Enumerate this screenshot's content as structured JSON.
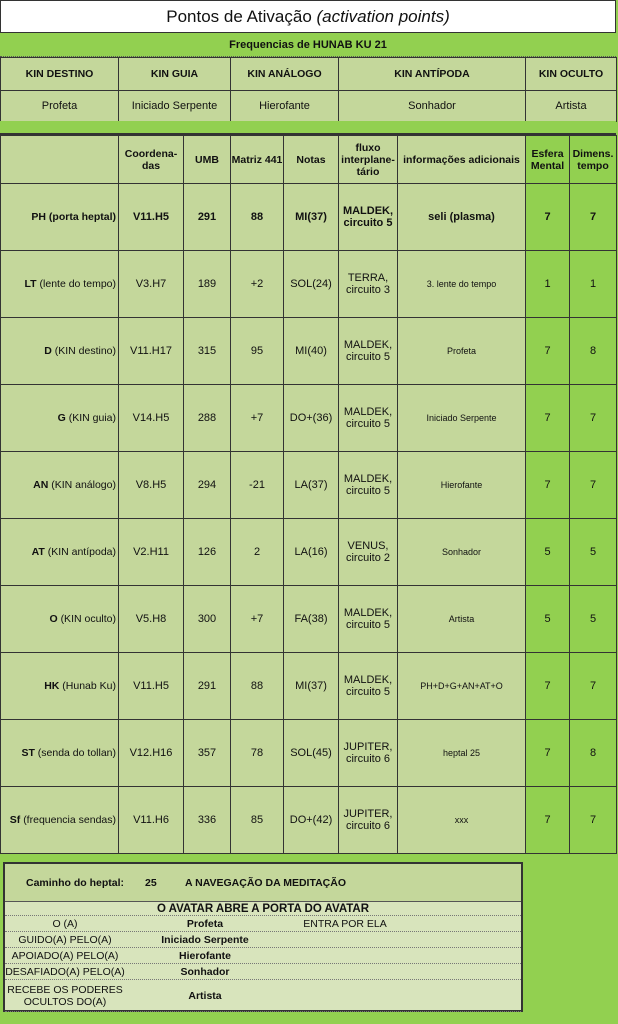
{
  "title": {
    "main": "Pontos de Ativação",
    "italic": "(activation points)"
  },
  "subtitle": "Frequencias de HUNAB KU 21",
  "kin": {
    "headers": [
      "KIN DESTINO",
      "KIN GUIA",
      "KIN ANÁLOGO",
      "KIN ANTÍPODA",
      "KIN OCULTO"
    ],
    "values": [
      "Profeta",
      "Iniciado Serpente",
      "Hierofante",
      "Sonhador",
      "Artista"
    ]
  },
  "columns": [
    "",
    "Coordena-das",
    "UMB",
    "Matriz 441",
    "Notas",
    "fluxo interplane-tário",
    "informações adicionais",
    "Esfera Mental",
    "Dimens. tempo"
  ],
  "rows": [
    {
      "code": "PH",
      "name": "(porta heptal)",
      "coord": "V11.H5",
      "umb": "291",
      "matriz": "88",
      "nota": "MI(37)",
      "fluxo": "MALDEK, circuito 5",
      "info": "seli (plasma)",
      "esfera": "7",
      "dim": "7"
    },
    {
      "code": "LT",
      "name": "(lente do tempo)",
      "coord": "V3.H7",
      "umb": "189",
      "matriz": "+2",
      "nota": "SOL(24)",
      "fluxo": "TERRA, circuito 3",
      "info": "3. lente do tempo",
      "esfera": "1",
      "dim": "1"
    },
    {
      "code": "D",
      "name": "(KIN destino)",
      "coord": "V11.H17",
      "umb": "315",
      "matriz": "95",
      "nota": "MI(40)",
      "fluxo": "MALDEK, circuito 5",
      "info": "Profeta",
      "esfera": "7",
      "dim": "8"
    },
    {
      "code": "G",
      "name": "(KIN guia)",
      "coord": "V14.H5",
      "umb": "288",
      "matriz": "+7",
      "nota": "DO+(36)",
      "fluxo": "MALDEK, circuito 5",
      "info": "Iniciado Serpente",
      "esfera": "7",
      "dim": "7"
    },
    {
      "code": "AN",
      "name": "(KIN análogo)",
      "coord": "V8.H5",
      "umb": "294",
      "matriz": "-21",
      "nota": "LA(37)",
      "fluxo": "MALDEK, circuito 5",
      "info": "Hierofante",
      "esfera": "7",
      "dim": "7"
    },
    {
      "code": "AT",
      "name": "(KIN antípoda)",
      "coord": "V2.H11",
      "umb": "126",
      "matriz": "2",
      "nota": "LA(16)",
      "fluxo": "VENUS, circuito 2",
      "info": "Sonhador",
      "esfera": "5",
      "dim": "5"
    },
    {
      "code": "O",
      "name": "(KIN oculto)",
      "coord": "V5.H8",
      "umb": "300",
      "matriz": "+7",
      "nota": "FA(38)",
      "fluxo": "MALDEK, circuito 5",
      "info": "Artista",
      "esfera": "5",
      "dim": "5"
    },
    {
      "code": "HK",
      "name": "(Hunab Ku)",
      "coord": "V11.H5",
      "umb": "291",
      "matriz": "88",
      "nota": "MI(37)",
      "fluxo": "MALDEK, circuito 5",
      "info": "PH+D+G+AN+AT+O",
      "esfera": "7",
      "dim": "7"
    },
    {
      "code": "ST",
      "name": "(senda do tollan)",
      "coord": "V12.H16",
      "umb": "357",
      "matriz": "78",
      "nota": "SOL(45)",
      "fluxo": "JUPITER, circuito 6",
      "info": "heptal 25",
      "esfera": "7",
      "dim": "8"
    },
    {
      "code": "Sf",
      "name": "(frequencia sendas)",
      "coord": "V11.H6",
      "umb": "336",
      "matriz": "85",
      "nota": "DO+(42)",
      "fluxo": "JUPITER, circuito 6",
      "info": "xxx",
      "esfera": "7",
      "dim": "7"
    }
  ],
  "bottom": {
    "caminho_label": "Caminho do heptal:",
    "caminho_num": "25",
    "caminho_text": "A NAVEGAÇÃO DA MEDITAÇÃO",
    "avatar_heading": "O AVATAR ABRE A PORTA DO AVATAR",
    "lines": [
      {
        "a": "O (A)",
        "b": "Profeta",
        "c": "ENTRA POR ELA"
      },
      {
        "a": "GUIDO(A) PELO(A)",
        "b": "Iniciado Serpente",
        "c": ""
      },
      {
        "a": "APOIADO(A) PELO(A)",
        "b": "Hierofante",
        "c": ""
      },
      {
        "a": "DESAFIADO(A) PELO(A)",
        "b": "Sonhador",
        "c": ""
      },
      {
        "a": "RECEBE OS PODERES OCULTOS DO(A)",
        "b": "Artista",
        "c": ""
      }
    ]
  },
  "colors": {
    "light_green": "#c4d79b",
    "bright_green": "#92d050"
  }
}
